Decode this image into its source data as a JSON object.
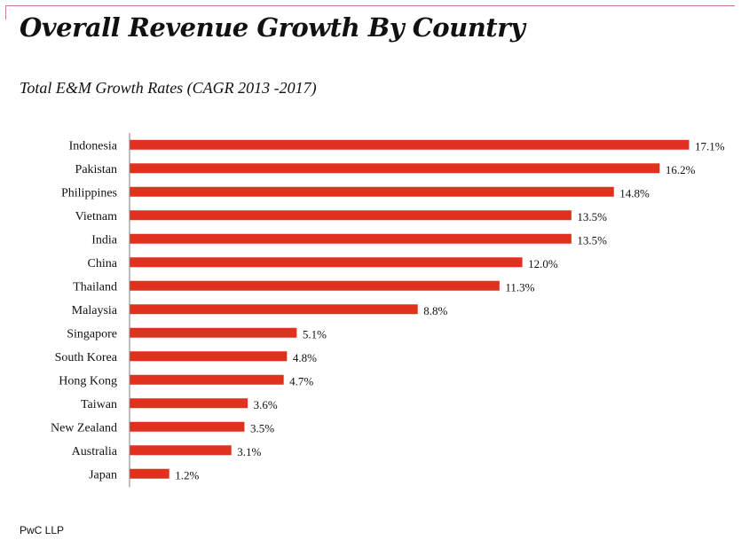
{
  "title": "Overall Revenue Growth By Country",
  "subtitle": "Total E&M Growth Rates  (CAGR 2013 -2017)",
  "footer": "PwC LLP",
  "colors": {
    "bar": "#e0301e",
    "axis": "#7f7f7f",
    "frame": "#c77a8c"
  },
  "chart_data": {
    "type": "bar",
    "orientation": "horizontal",
    "title": "Overall Revenue Growth By Country",
    "subtitle": "Total E&M Growth Rates  (CAGR 2013 -2017)",
    "xlabel": "",
    "ylabel": "",
    "unit": "%",
    "xlim": [
      0,
      17.1
    ],
    "grid": false,
    "legend": "none",
    "categories": [
      "Indonesia",
      "Pakistan",
      "Philippines",
      "Vietnam",
      "India",
      "China",
      "Thailand",
      "Malaysia",
      "Singapore",
      "South Korea",
      "Hong Kong",
      "Taiwan",
      "New Zealand",
      "Australia",
      "Japan"
    ],
    "values": [
      17.1,
      16.2,
      14.8,
      13.5,
      13.5,
      12.0,
      11.3,
      8.8,
      5.1,
      4.8,
      4.7,
      3.6,
      3.5,
      3.1,
      1.2
    ],
    "data_labels": [
      "17.1%",
      "16.2%",
      "14.8%",
      "13.5%",
      "13.5%",
      "12.0%",
      "11.3%",
      "8.8%",
      "5.1%",
      "4.8%",
      "4.7%",
      "3.6%",
      "3.5%",
      "3.1%",
      "1.2%"
    ]
  }
}
